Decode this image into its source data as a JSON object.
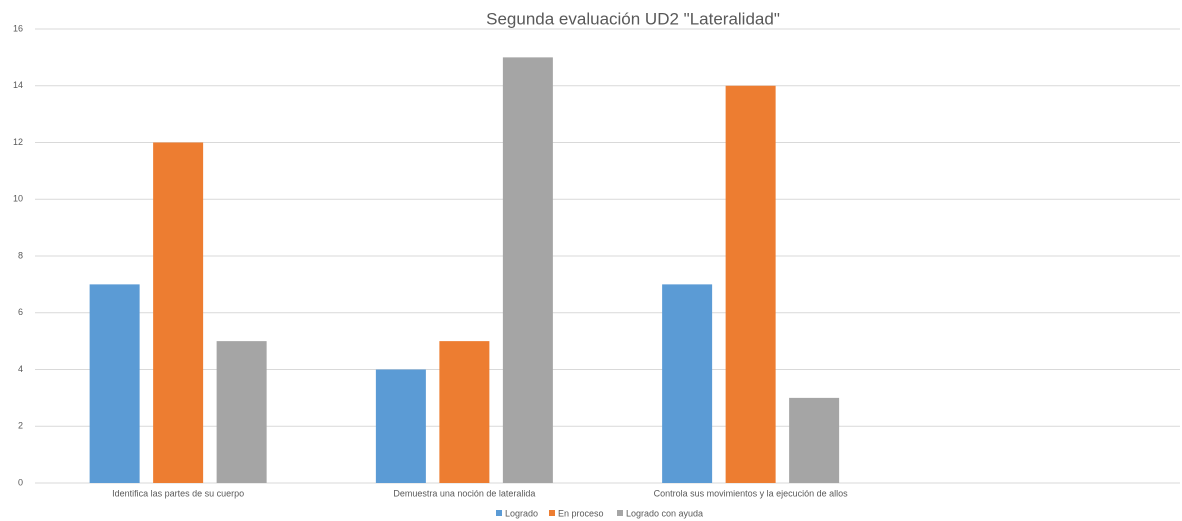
{
  "chart_data": {
    "type": "bar",
    "title": "Segunda evaluación UD2  \"Lateralidad\"",
    "categories": [
      "Identifica las partes de su cuerpo",
      "Demuestra una noción de lateralida",
      "Controla sus movimientos y la ejecución de allos",
      null
    ],
    "series": [
      {
        "name": "Logrado",
        "color": "#5b9bd5",
        "values": [
          7,
          4,
          7,
          null
        ]
      },
      {
        "name": "En proceso",
        "color": "#ed7d31",
        "values": [
          12,
          5,
          14,
          null
        ]
      },
      {
        "name": "Logrado con ayuda",
        "color": "#a5a5a5",
        "values": [
          5,
          15,
          3,
          null
        ]
      }
    ],
    "ylim": [
      0,
      16
    ],
    "yticks": [
      0,
      2,
      4,
      6,
      8,
      10,
      12,
      14,
      16
    ],
    "grid": true,
    "legend": "bottom"
  }
}
